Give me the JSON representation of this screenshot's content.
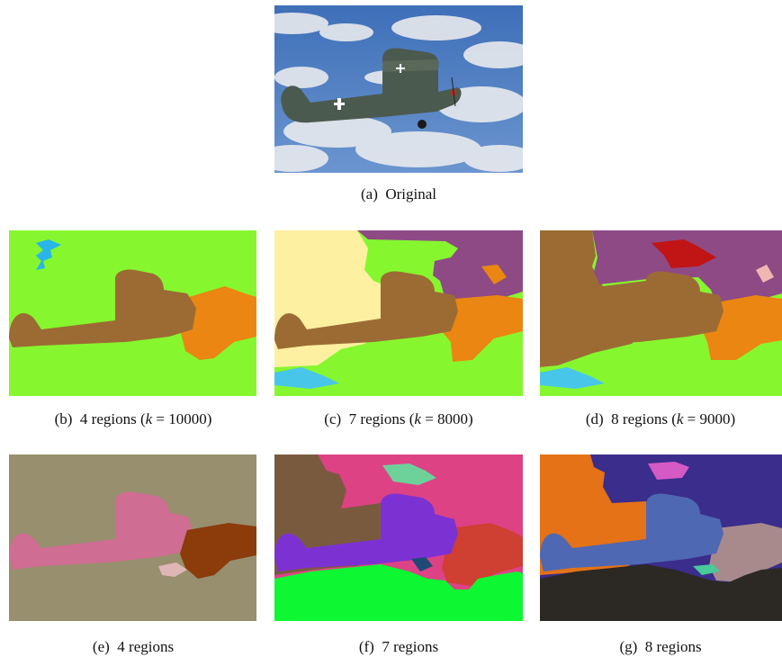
{
  "figure": {
    "panels": [
      {
        "id": "a",
        "label": "(a)",
        "caption": "Original"
      },
      {
        "id": "b",
        "label": "(b)",
        "caption_pre": "4 regions (",
        "k_symbol": "k",
        "caption_eq": " = 10000)"
      },
      {
        "id": "c",
        "label": "(c)",
        "caption_pre": "7 regions (",
        "k_symbol": "k",
        "caption_eq": " = 8000)"
      },
      {
        "id": "d",
        "label": "(d)",
        "caption_pre": "8 regions (",
        "k_symbol": "k",
        "caption_eq": " = 9000)"
      },
      {
        "id": "e",
        "label": "(e)",
        "caption": "4 regions"
      },
      {
        "id": "f",
        "label": "(f)",
        "caption": "7 regions"
      },
      {
        "id": "g",
        "label": "(g)",
        "caption": "8 regions"
      }
    ]
  },
  "colors": {
    "b": {
      "bg": "#86f72e",
      "plane": "#9c6b34",
      "cloud": "#ea8611",
      "spot": "#27b5ea"
    },
    "c": {
      "bg": "#86f72e",
      "cream": "#fdf0a1",
      "purple": "#8e4a85",
      "plane": "#9c6b34",
      "cloud": "#ea8611",
      "spot": "#48c6ea"
    },
    "d": {
      "bg": "#86f72e",
      "brown": "#9c6b34",
      "purple": "#8e4a85",
      "red": "#c11414",
      "cloud": "#ea8611",
      "pink": "#f0b7b0",
      "spot": "#48c6ea"
    },
    "e": {
      "bg": "#978f6d",
      "plane": "#cf6d92",
      "dark": "#8c3b0a",
      "pink": "#e0b5b5"
    },
    "f": {
      "bg": "#dd4285",
      "brown": "#7a5a3f",
      "plane": "#7c32d3",
      "green": "#0df732",
      "red": "#cf3f32",
      "teal": "#6dd19a",
      "navy": "#1f4a77"
    },
    "g": {
      "bg": "#3b2d8b",
      "orange": "#e57217",
      "plane": "#4f68b3",
      "dark": "#2c2823",
      "mauve": "#a88a8d",
      "pink": "#d55ac6",
      "cyan": "#66b8f2",
      "teal": "#48c99a"
    }
  }
}
